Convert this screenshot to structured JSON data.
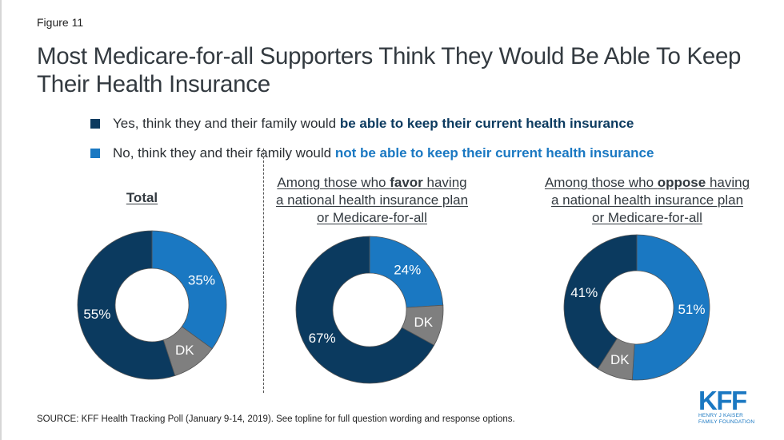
{
  "figure_label": "Figure 11",
  "title": "Most Medicare-for-all Supporters Think They Would Be Able To Keep Their Health Insurance",
  "colors": {
    "yes": "#0b3a5f",
    "no": "#1a78c2",
    "dk": "#7f7f7f",
    "text": "#333a40"
  },
  "legend": [
    {
      "key": "yes",
      "prefix": "Yes, think they and their family would ",
      "emphasis": "be able to keep their current health insurance"
    },
    {
      "key": "no",
      "prefix": "No, think they and their family would ",
      "emphasis": "not be able to keep their current health insurance"
    }
  ],
  "panels": [
    {
      "title_pre": "",
      "title_bold": "Total",
      "title_post": "",
      "title_line2": "",
      "title_line3": ""
    },
    {
      "title_pre": "Among those who ",
      "title_bold": "favor",
      "title_post": " having",
      "title_line2": "a national health insurance plan",
      "title_line3": "or Medicare-for-all"
    },
    {
      "title_pre": "Among those who ",
      "title_bold": "oppose",
      "title_post": " having",
      "title_line2": "a national health insurance plan",
      "title_line3": "or Medicare-for-all"
    }
  ],
  "chart_data": {
    "type": "pie",
    "subtype": "donut",
    "title": "Most Medicare-for-all Supporters Think They Would Be Able To Keep Their Health Insurance",
    "legend_entries": [
      "Yes, think they and their family would be able to keep their current health insurance",
      "No, think they and their family would not be able to keep their current health insurance"
    ],
    "charts": [
      {
        "name": "Total",
        "slices": [
          {
            "key": "no",
            "label": "35%",
            "value": 35
          },
          {
            "key": "dk",
            "label": "DK",
            "value": 10
          },
          {
            "key": "yes",
            "label": "55%",
            "value": 55
          }
        ]
      },
      {
        "name": "Among those who favor having a national health insurance plan or Medicare-for-all",
        "slices": [
          {
            "key": "no",
            "label": "24%",
            "value": 24
          },
          {
            "key": "dk",
            "label": "DK",
            "value": 9
          },
          {
            "key": "yes",
            "label": "67%",
            "value": 67
          }
        ]
      },
      {
        "name": "Among those who oppose having a national health insurance plan or Medicare-for-all",
        "slices": [
          {
            "key": "no",
            "label": "51%",
            "value": 51
          },
          {
            "key": "dk",
            "label": "DK",
            "value": 8
          },
          {
            "key": "yes",
            "label": "41%",
            "value": 41
          }
        ]
      }
    ]
  },
  "source": "SOURCE: KFF Health Tracking Poll (January 9-14, 2019). See topline for full question wording and response options.",
  "logo": {
    "mark": "KFF",
    "line1": "HENRY J KAISER",
    "line2": "FAMILY FOUNDATION"
  }
}
